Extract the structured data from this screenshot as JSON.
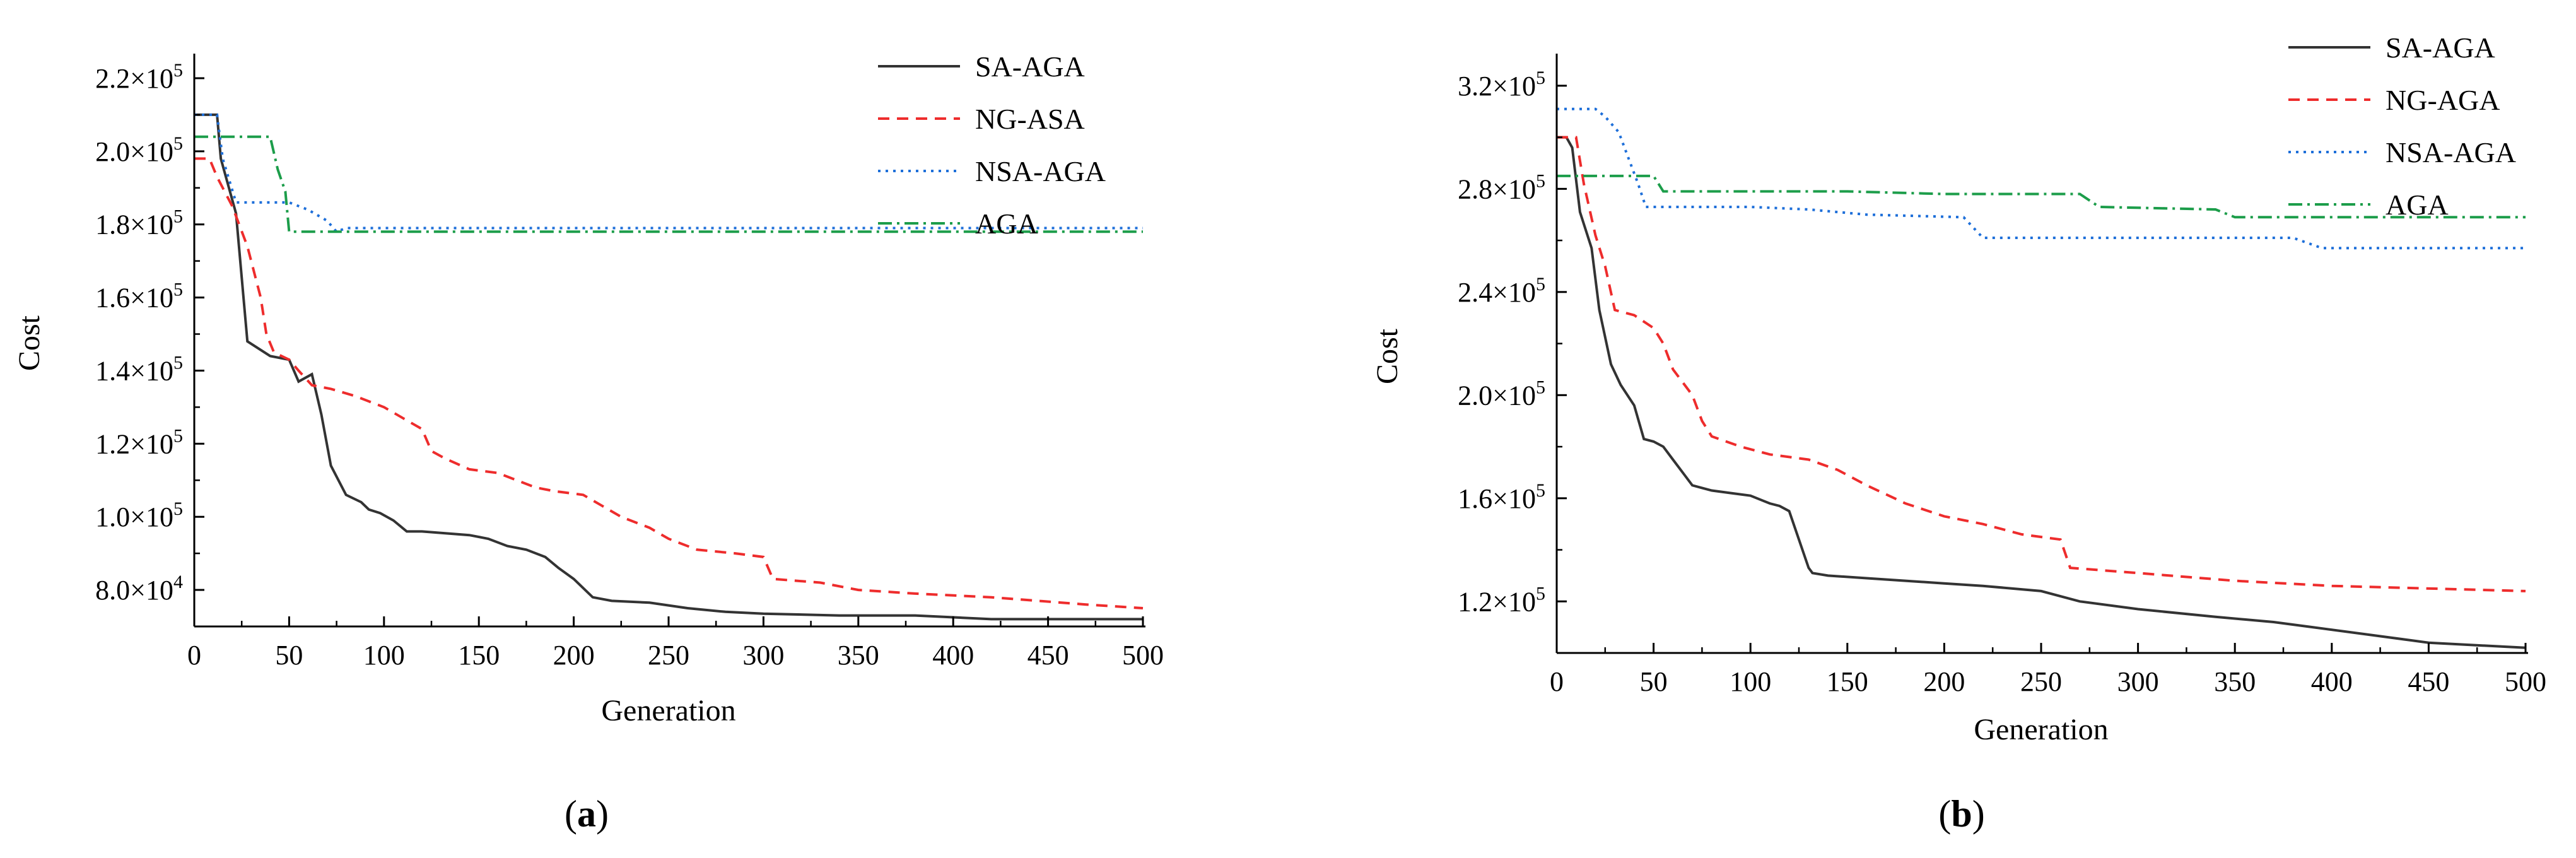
{
  "chart_data": [
    {
      "type": "line",
      "panel_label": "a",
      "xlabel": "Generation",
      "ylabel": "Cost",
      "xlim": [
        0,
        500
      ],
      "ylim": [
        70000,
        225000
      ],
      "xticks": [
        0,
        50,
        100,
        150,
        200,
        250,
        300,
        350,
        400,
        450,
        500
      ],
      "xtick_labels": [
        "0",
        "50",
        "100",
        "150",
        "200",
        "250",
        "300",
        "350",
        "400",
        "450",
        "500"
      ],
      "yticks": [
        {
          "value": 80000,
          "mantissa": "8.0",
          "exp": "4"
        },
        {
          "value": 100000,
          "mantissa": "1.0",
          "exp": "5"
        },
        {
          "value": 120000,
          "mantissa": "1.2",
          "exp": "5"
        },
        {
          "value": 140000,
          "mantissa": "1.4",
          "exp": "5"
        },
        {
          "value": 160000,
          "mantissa": "1.6",
          "exp": "5"
        },
        {
          "value": 180000,
          "mantissa": "1.8",
          "exp": "5"
        },
        {
          "value": 200000,
          "mantissa": "2.0",
          "exp": "5"
        },
        {
          "value": 220000,
          "mantissa": "2.2",
          "exp": "5"
        }
      ],
      "tick_times_sign": "×10",
      "legend_position": "top-right",
      "series": [
        {
          "name": "SA-AGA",
          "color": "#333333",
          "dash": "none",
          "x": [
            0,
            12,
            14,
            22,
            28,
            40,
            50,
            55,
            62,
            67,
            72,
            80,
            88,
            92,
            98,
            105,
            112,
            120,
            145,
            155,
            165,
            175,
            185,
            192,
            200,
            210,
            220,
            240,
            260,
            280,
            300,
            340,
            380,
            420,
            500
          ],
          "y": [
            210000,
            210000,
            198000,
            183000,
            148000,
            144000,
            143000,
            137000,
            139000,
            128000,
            114000,
            106000,
            104000,
            102000,
            101000,
            99000,
            96000,
            96000,
            95000,
            94000,
            92000,
            91000,
            89000,
            86000,
            83000,
            78000,
            77000,
            76500,
            75000,
            74000,
            73500,
            73000,
            73000,
            72000,
            72000
          ]
        },
        {
          "name": "NG-ASA",
          "color": "#ee2c2c",
          "dash": "18,12",
          "x": [
            0,
            8,
            12,
            20,
            28,
            35,
            38,
            42,
            50,
            55,
            62,
            72,
            85,
            100,
            110,
            120,
            125,
            132,
            145,
            160,
            170,
            180,
            190,
            205,
            215,
            225,
            240,
            250,
            265,
            285,
            300,
            305,
            330,
            350,
            380,
            420,
            470,
            500
          ],
          "y": [
            198000,
            198000,
            193000,
            185000,
            174000,
            160000,
            150000,
            145000,
            143000,
            140000,
            136000,
            135000,
            133000,
            130000,
            127000,
            124000,
            118000,
            116000,
            113000,
            112000,
            110000,
            108000,
            107000,
            106000,
            103000,
            100000,
            97000,
            94000,
            91000,
            90000,
            89000,
            83000,
            82000,
            80000,
            79000,
            78000,
            76000,
            75000
          ]
        },
        {
          "name": "NSA-AGA",
          "color": "#1e6fd9",
          "dash": "4,8",
          "x": [
            0,
            12,
            15,
            22,
            50,
            60,
            70,
            75,
            80,
            500
          ],
          "y": [
            210000,
            210000,
            198000,
            186000,
            186000,
            184000,
            181000,
            178000,
            179000,
            179000
          ]
        },
        {
          "name": "AGA",
          "color": "#1c9d4a",
          "dash": "22,8,4,8",
          "x": [
            0,
            40,
            44,
            48,
            50,
            500
          ],
          "y": [
            204000,
            204000,
            195000,
            189000,
            178000,
            178000
          ]
        }
      ]
    },
    {
      "type": "line",
      "panel_label": "b",
      "xlabel": "Generation",
      "ylabel": "Cost",
      "xlim": [
        0,
        500
      ],
      "ylim": [
        100000,
        330000
      ],
      "xticks": [
        0,
        50,
        100,
        150,
        200,
        250,
        300,
        350,
        400,
        450,
        500
      ],
      "xtick_labels": [
        "0",
        "50",
        "100",
        "150",
        "200",
        "250",
        "300",
        "350",
        "400",
        "450",
        "500"
      ],
      "yticks": [
        {
          "value": 120000,
          "mantissa": "1.2",
          "exp": "5"
        },
        {
          "value": 160000,
          "mantissa": "1.6",
          "exp": "5"
        },
        {
          "value": 200000,
          "mantissa": "2.0",
          "exp": "5"
        },
        {
          "value": 240000,
          "mantissa": "2.4",
          "exp": "5"
        },
        {
          "value": 280000,
          "mantissa": "2.8",
          "exp": "5"
        },
        {
          "value": 320000,
          "mantissa": "3.2",
          "exp": "5"
        }
      ],
      "tick_times_sign": "×10",
      "legend_position": "top-right",
      "series": [
        {
          "name": "SA-AGA",
          "color": "#333333",
          "dash": "none",
          "x": [
            0,
            5,
            8,
            12,
            18,
            22,
            28,
            33,
            40,
            45,
            50,
            55,
            60,
            65,
            70,
            75,
            80,
            90,
            100,
            110,
            115,
            120,
            130,
            132,
            140,
            160,
            180,
            200,
            220,
            250,
            270,
            300,
            340,
            370,
            390,
            420,
            450,
            500
          ],
          "y": [
            300000,
            300000,
            296000,
            271000,
            257000,
            233000,
            212000,
            204000,
            196000,
            183000,
            182000,
            180000,
            175000,
            170000,
            165000,
            164000,
            163000,
            162000,
            161000,
            158000,
            157000,
            155000,
            133000,
            131000,
            130000,
            129000,
            128000,
            127000,
            126000,
            124000,
            120000,
            117000,
            114000,
            112000,
            110000,
            107000,
            104000,
            102000
          ]
        },
        {
          "name": "NG-AGA",
          "color": "#ee2c2c",
          "dash": "18,12",
          "x": [
            0,
            10,
            14,
            20,
            25,
            30,
            40,
            50,
            55,
            60,
            70,
            75,
            80,
            95,
            110,
            130,
            145,
            160,
            180,
            200,
            220,
            240,
            260,
            265,
            300,
            350,
            400,
            500
          ],
          "y": [
            300000,
            300000,
            282000,
            262000,
            250000,
            233000,
            231000,
            226000,
            220000,
            210000,
            200000,
            190000,
            184000,
            180000,
            177000,
            175000,
            171000,
            165000,
            158000,
            153000,
            150000,
            146000,
            144000,
            133000,
            131000,
            128000,
            126000,
            124000
          ]
        },
        {
          "name": "NSA-AGA",
          "color": "#1e6fd9",
          "dash": "4,8",
          "x": [
            0,
            20,
            25,
            32,
            38,
            42,
            46,
            100,
            130,
            160,
            210,
            220,
            290,
            380,
            395,
            500
          ],
          "y": [
            311000,
            311000,
            308000,
            302000,
            290000,
            282000,
            273000,
            273000,
            272000,
            270000,
            269000,
            261000,
            261000,
            261000,
            257000,
            257000
          ]
        },
        {
          "name": "AGA",
          "color": "#1c9d4a",
          "dash": "22,8,4,8",
          "x": [
            0,
            50,
            55,
            60,
            150,
            200,
            270,
            280,
            340,
            350,
            500
          ],
          "y": [
            285000,
            285000,
            279000,
            279000,
            279000,
            278000,
            278000,
            273000,
            272000,
            269000,
            269000
          ]
        }
      ]
    }
  ]
}
